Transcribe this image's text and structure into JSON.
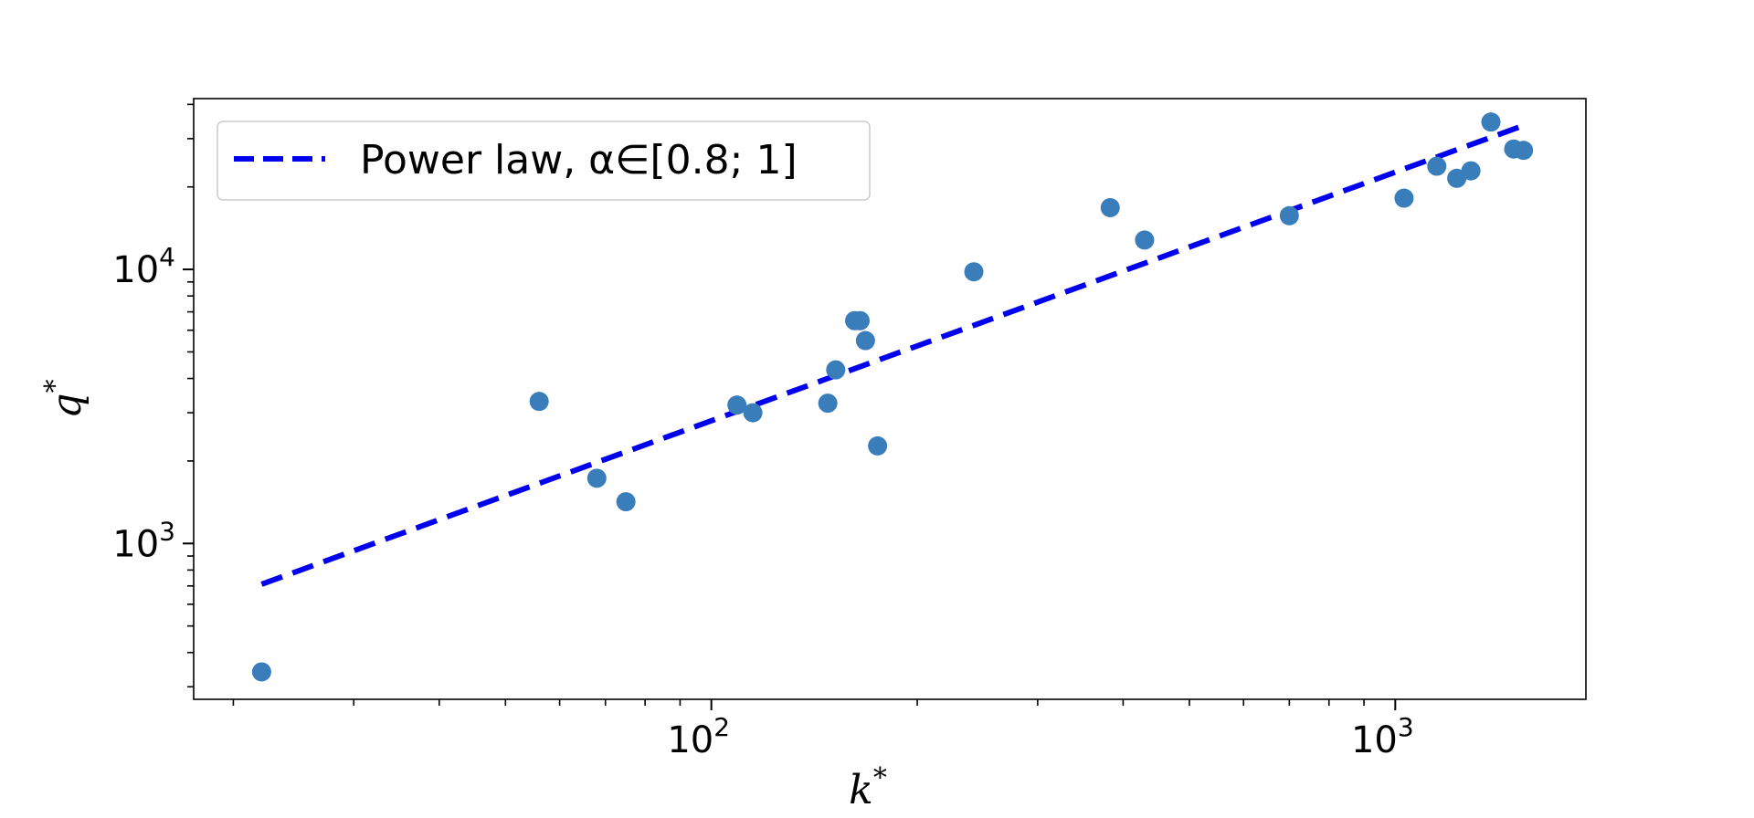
{
  "chart_data": {
    "type": "scatter",
    "title": "",
    "xlabel_base": "k",
    "ylabel_base": "q",
    "label_superscript": "*",
    "xscale": "log",
    "yscale": "log",
    "xlim": [
      17.5,
      1900
    ],
    "ylim": [
      270,
      42000
    ],
    "grid": false,
    "legend_position": "top-left",
    "x_major_ticks": [
      {
        "value": 100,
        "base": "10",
        "exp": "2"
      },
      {
        "value": 1000,
        "base": "10",
        "exp": "3"
      }
    ],
    "y_major_ticks": [
      {
        "value": 1000,
        "base": "10",
        "exp": "3"
      },
      {
        "value": 10000,
        "base": "10",
        "exp": "4"
      }
    ],
    "points_color": "#3a7dbb",
    "fit_color": "#0000ee",
    "series": [
      {
        "kind": "points",
        "x": [
          22,
          56,
          68,
          75,
          109,
          115,
          148,
          152,
          162,
          165,
          168,
          175,
          242,
          383,
          430,
          700,
          1030,
          1150,
          1230,
          1290,
          1380,
          1490,
          1540
        ],
        "y": [
          340,
          3300,
          1730,
          1420,
          3200,
          3000,
          3250,
          4300,
          6500,
          6500,
          5500,
          2270,
          9800,
          16800,
          12800,
          15700,
          18200,
          23800,
          21500,
          22900,
          34500,
          27500,
          27200
        ]
      },
      {
        "kind": "fit",
        "name": "Power law, α∈[0.8; 1]",
        "x": [
          22,
          1540
        ],
        "y": [
          710,
          33500
        ]
      }
    ]
  }
}
